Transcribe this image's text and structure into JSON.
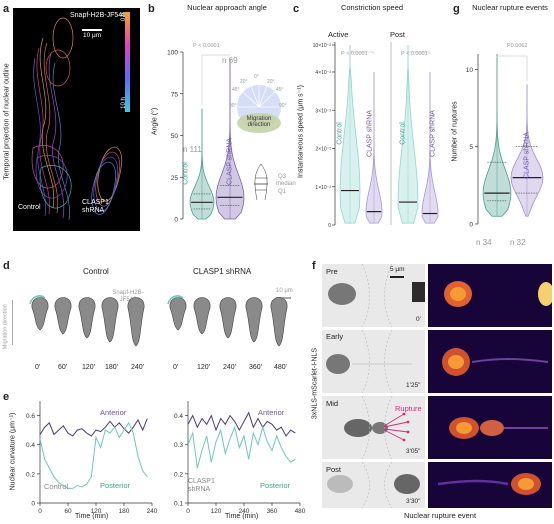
{
  "panels": {
    "a": {
      "letter": "a",
      "probe": "Snapf-H2B-JF549",
      "scale": "10 μm",
      "time_start": "0 h",
      "time_end": "10 h",
      "ylabel": "Temporal projection of nuclear outline",
      "label_control": "Control",
      "label_clasp": "CLASP1 shRNA"
    },
    "b": {
      "letter": "b",
      "title": "Nuclear approach angle",
      "ylabel": "Angle (°)",
      "pvalue": "P < 0.0001",
      "n_control": "n 111",
      "n_clasp": "n 69",
      "cat_control": "Control",
      "cat_clasp": "CLASP shRNA",
      "legend_q3": "Q3",
      "legend_median": "median",
      "legend_q1": "Q1",
      "inset_angles": [
        "0°",
        "20°",
        "20°",
        "45°",
        "45°",
        "90°",
        "90°"
      ],
      "inset_label": "Migration direction"
    },
    "c": {
      "letter": "c",
      "title": "Constriction speed",
      "sub_active": "Active",
      "sub_post": "Post",
      "ylabel": "Instantaneous speed (μm s⁻¹)",
      "p_active": "P < 0.0001",
      "p_post": "P < 0.0001",
      "cat_control": "Control",
      "cat_clasp": "CLASP shRNA"
    },
    "g": {
      "letter": "g",
      "title": "Nuclear rupture events",
      "ylabel": "Number of ruptures",
      "pvalue": "P0.0062",
      "n_control": "n 34",
      "n_clasp": "n 32",
      "cat_clasp": "CLASP shRNA"
    },
    "d": {
      "letter": "d",
      "title_control": "Control",
      "title_clasp": "CLASP1 shRNA",
      "probe": "Snapf-H2B-JF549",
      "scale": "10 μm",
      "side_label": "Migration direction",
      "times_control": [
        "0'",
        "60'",
        "120'",
        "180'",
        "240'"
      ],
      "times_clasp": [
        "0'",
        "120'",
        "240'",
        "360'",
        "480'"
      ]
    },
    "e": {
      "letter": "e",
      "ylabel": "Nuclear curvature (μm⁻¹)",
      "xlabel": "Time (min)",
      "label_anterior": "Anterior",
      "label_posterior": "Posterior",
      "label_control": "Control",
      "label_clasp": "CLASP1 shRNA"
    },
    "f": {
      "letter": "f",
      "ylabel": "3xNLS-mScarlet-I-NLS",
      "scale": "5 μm",
      "stages": [
        "Pre",
        "Early",
        "Mid",
        "Post"
      ],
      "times": [
        "0'",
        "1'25\"",
        "3'05\"",
        "3'30\""
      ],
      "rupture_label": "Rupture",
      "xlabel": "Nuclear rupture event"
    }
  },
  "chart_data": [
    {
      "type": "violin",
      "panel": "b",
      "title": "Nuclear approach angle",
      "ylabel": "Angle (°)",
      "categories": [
        "Control",
        "CLASP shRNA"
      ],
      "ylim": [
        0,
        100
      ],
      "yticks": [
        0,
        25,
        50,
        75,
        100
      ],
      "series": [
        {
          "name": "Control",
          "median": 10,
          "q1": 6,
          "q3": 15,
          "max": 66,
          "n": 111,
          "color": "#4a9e8e"
        },
        {
          "name": "CLASP shRNA",
          "median": 13,
          "q1": 8,
          "q3": 20,
          "max": 96,
          "n": 69,
          "color": "#7a63b0"
        }
      ],
      "pvalue": "P < 0.0001"
    },
    {
      "type": "violin",
      "panel": "c",
      "title": "Constriction speed",
      "ylabel": "Instantaneous speed (μm s⁻¹)",
      "yticks": [
        "0",
        "1×10⁻²",
        "2×10⁻²",
        "3×10⁻²",
        "4×10⁻²",
        "10×10⁻²"
      ],
      "groups": [
        "Active",
        "Post"
      ],
      "categories": [
        "Control",
        "CLASP shRNA"
      ],
      "series": [
        {
          "group": "Active",
          "name": "Control",
          "median": 0.009,
          "color": "#8fd6cf"
        },
        {
          "group": "Active",
          "name": "CLASP shRNA",
          "median": 0.0035,
          "color": "#a999d4"
        },
        {
          "group": "Post",
          "name": "Control",
          "median": 0.006,
          "color": "#8fd6cf"
        },
        {
          "group": "Post",
          "name": "CLASP shRNA",
          "median": 0.003,
          "color": "#a999d4"
        }
      ],
      "pvalues": [
        "P < 0.0001",
        "P < 0.0001"
      ]
    },
    {
      "type": "violin",
      "panel": "g",
      "title": "Nuclear rupture events",
      "ylabel": "Number of ruptures",
      "categories": [
        "Control",
        "CLASP shRNA"
      ],
      "ylim": [
        0,
        11
      ],
      "yticks": [
        0,
        5,
        10
      ],
      "series": [
        {
          "name": "Control",
          "median": 2,
          "q1": 1.5,
          "q3": 4,
          "max": 11,
          "n": 34,
          "color": "#4a9e8e"
        },
        {
          "name": "CLASP shRNA",
          "median": 3,
          "q1": 2,
          "q3": 5,
          "max": 9,
          "n": 32,
          "color": "#a48fd0"
        }
      ],
      "pvalue": "P0.0062"
    },
    {
      "type": "line",
      "panel": "e-control",
      "xlabel": "Time (min)",
      "ylabel": "Nuclear curvature (μm⁻¹)",
      "xlim": [
        0,
        240
      ],
      "ylim": [
        0,
        0.7
      ],
      "xticks": [
        0,
        60,
        120,
        180,
        240
      ],
      "yticks": [
        0,
        0.2,
        0.4,
        0.6
      ],
      "series": [
        {
          "name": "Anterior",
          "color": "#4b3a7a",
          "x": [
            0,
            10,
            20,
            30,
            40,
            50,
            60,
            70,
            80,
            90,
            100,
            110,
            120,
            130,
            140,
            150,
            160,
            170,
            180,
            190,
            200,
            210,
            220,
            230
          ],
          "y": [
            0.47,
            0.52,
            0.55,
            0.47,
            0.5,
            0.53,
            0.48,
            0.46,
            0.5,
            0.51,
            0.48,
            0.46,
            0.5,
            0.49,
            0.52,
            0.56,
            0.52,
            0.55,
            0.51,
            0.48,
            0.52,
            0.57,
            0.5,
            0.58
          ]
        },
        {
          "name": "Posterior",
          "color": "#6ec7bb",
          "x": [
            0,
            10,
            20,
            30,
            40,
            50,
            60,
            70,
            80,
            90,
            100,
            110,
            120,
            130,
            140,
            150,
            160,
            170,
            180,
            190,
            200,
            210,
            220,
            230
          ],
          "y": [
            0.44,
            0.3,
            0.24,
            0.18,
            0.14,
            0.12,
            0.1,
            0.1,
            0.12,
            0.11,
            0.13,
            0.18,
            0.45,
            0.38,
            0.5,
            0.48,
            0.52,
            0.45,
            0.5,
            0.55,
            0.48,
            0.32,
            0.22,
            0.18
          ]
        }
      ]
    },
    {
      "type": "line",
      "panel": "e-clasp",
      "xlabel": "Time (min)",
      "xlim": [
        0,
        480
      ],
      "ylim": [
        0.1,
        0.45
      ],
      "xticks": [
        0,
        120,
        240,
        360,
        480
      ],
      "yticks": [
        0.1,
        0.2,
        0.3,
        0.4
      ],
      "series": [
        {
          "name": "Anterior",
          "color": "#4b3a7a",
          "x": [
            0,
            20,
            40,
            60,
            80,
            100,
            120,
            140,
            160,
            180,
            200,
            220,
            240,
            260,
            280,
            300,
            320,
            340,
            360,
            380,
            400,
            420,
            440,
            460
          ],
          "y": [
            0.37,
            0.4,
            0.36,
            0.39,
            0.37,
            0.4,
            0.35,
            0.39,
            0.37,
            0.4,
            0.38,
            0.35,
            0.38,
            0.41,
            0.36,
            0.39,
            0.36,
            0.38,
            0.37,
            0.35,
            0.36,
            0.33,
            0.35,
            0.34
          ]
        },
        {
          "name": "Posterior",
          "color": "#6ec7bb",
          "x": [
            0,
            20,
            40,
            60,
            80,
            100,
            120,
            140,
            160,
            180,
            200,
            220,
            240,
            260,
            280,
            300,
            320,
            340,
            360,
            380,
            400,
            420,
            440,
            460
          ],
          "y": [
            0.3,
            0.34,
            0.22,
            0.28,
            0.33,
            0.24,
            0.31,
            0.35,
            0.27,
            0.32,
            0.36,
            0.29,
            0.33,
            0.25,
            0.34,
            0.3,
            0.36,
            0.31,
            0.28,
            0.33,
            0.29,
            0.26,
            0.24,
            0.25
          ]
        }
      ]
    }
  ]
}
